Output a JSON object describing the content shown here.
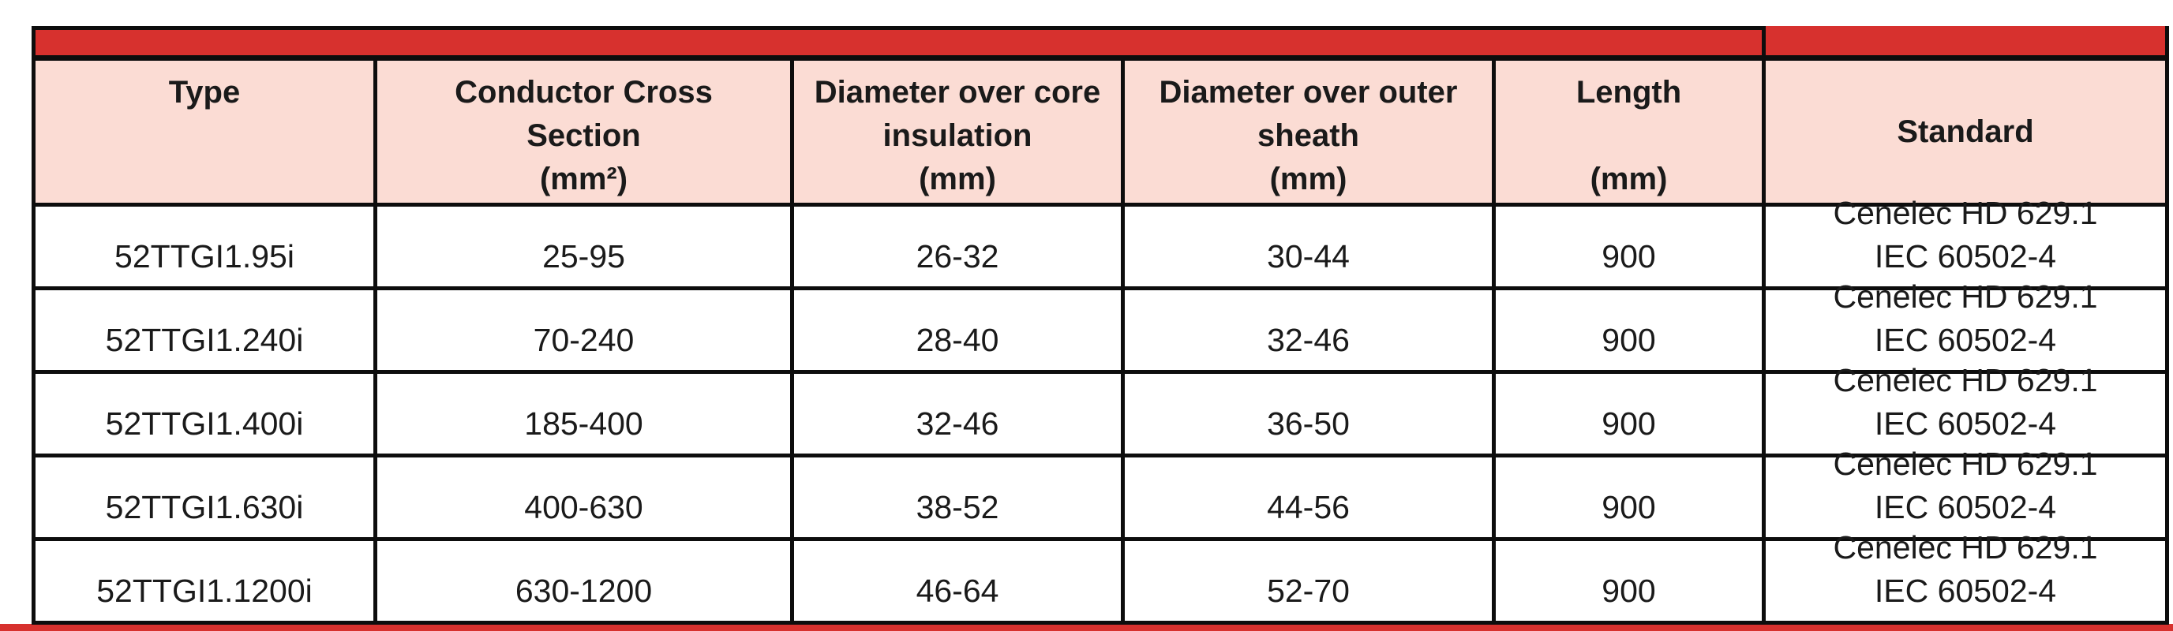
{
  "colors": {
    "bar_red": "#d7312e",
    "header_pink": "#fbdcd4",
    "border_black": "#0d0d0d",
    "text_black": "#1a1a1a"
  },
  "table": {
    "title_bar_text": "",
    "columns": [
      {
        "id": "type",
        "label": [
          "Type"
        ]
      },
      {
        "id": "conductor_cross_section",
        "label": [
          "Conductor Cross",
          "Section",
          "(mm²)"
        ]
      },
      {
        "id": "diameter_over_core_insulation",
        "label": [
          "Diameter over core",
          "insulation",
          "(mm)"
        ]
      },
      {
        "id": "diameter_over_outer_sheath",
        "label": [
          "Diameter over outer",
          "sheath",
          "(mm)"
        ]
      },
      {
        "id": "length",
        "label": [
          "Length",
          "",
          "(mm)"
        ]
      },
      {
        "id": "standard",
        "label": [
          "Standard"
        ]
      }
    ],
    "rows": [
      [
        "52TTGI1.95i",
        "25-95",
        "26-32",
        "30-44",
        "900",
        [
          "Cenelec HD 629.1",
          "IEC 60502-4"
        ]
      ],
      [
        "52TTGI1.240i",
        "70-240",
        "28-40",
        "32-46",
        "900",
        [
          "Cenelec HD 629.1",
          "IEC 60502-4"
        ]
      ],
      [
        "52TTGI1.400i",
        "185-400",
        "32-46",
        "36-50",
        "900",
        [
          "Cenelec HD 629.1",
          "IEC 60502-4"
        ]
      ],
      [
        "52TTGI1.630i",
        "400-630",
        "38-52",
        "44-56",
        "900",
        [
          "Cenelec HD 629.1",
          "IEC 60502-4"
        ]
      ],
      [
        "52TTGI1.1200i",
        "630-1200",
        "46-64",
        "52-70",
        "900",
        [
          "Cenelec HD 629.1",
          "IEC 60502-4"
        ]
      ]
    ]
  }
}
